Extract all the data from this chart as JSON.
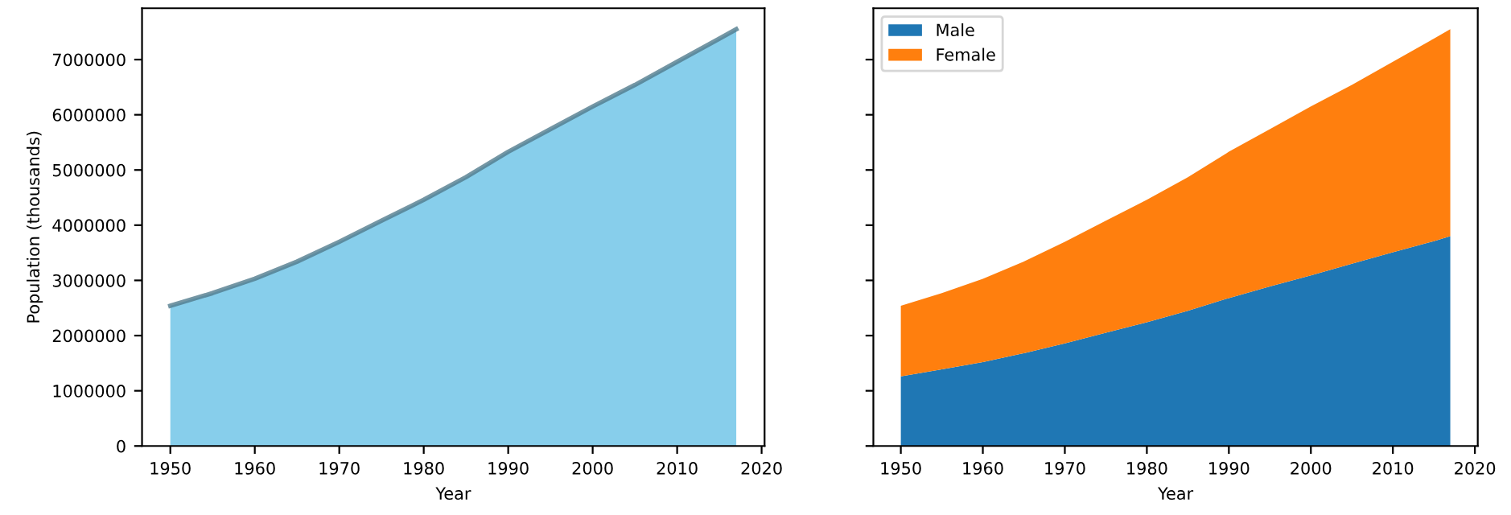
{
  "chart_data": [
    {
      "type": "area",
      "xlabel": "Year",
      "ylabel": "Population (thousands)",
      "x": [
        1950,
        1955,
        1960,
        1965,
        1970,
        1975,
        1980,
        1985,
        1990,
        1995,
        2000,
        2005,
        2010,
        2015,
        2017
      ],
      "series": [
        {
          "color": "#87ceeb",
          "values": [
            2540000,
            2770000,
            3030000,
            3340000,
            3700000,
            4080000,
            4460000,
            4870000,
            5330000,
            5740000,
            6150000,
            6540000,
            6960000,
            7380000,
            7550000
          ]
        }
      ],
      "xlim": [
        1946.65,
        2020.35
      ],
      "xticks": [
        1950,
        1960,
        1970,
        1980,
        1990,
        2000,
        2010,
        2020
      ],
      "ylim": [
        0,
        7930000
      ],
      "yticks": [
        0,
        1000000,
        2000000,
        3000000,
        4000000,
        5000000,
        6000000,
        7000000
      ]
    },
    {
      "type": "area",
      "stacked": true,
      "xlabel": "Year",
      "x": [
        1950,
        1955,
        1960,
        1965,
        1970,
        1975,
        1980,
        1985,
        1990,
        1995,
        2000,
        2005,
        2010,
        2015,
        2017
      ],
      "series": [
        {
          "name": "Male",
          "color": "#1f77b4",
          "values": [
            1260000,
            1390000,
            1520000,
            1680000,
            1860000,
            2050000,
            2240000,
            2450000,
            2680000,
            2890000,
            3090000,
            3300000,
            3510000,
            3710000,
            3800000
          ]
        },
        {
          "name": "Female",
          "color": "#ff7f0e",
          "values": [
            1280000,
            1380000,
            1510000,
            1660000,
            1840000,
            2030000,
            2220000,
            2420000,
            2650000,
            2850000,
            3060000,
            3240000,
            3450000,
            3670000,
            3750000
          ]
        }
      ],
      "legend": "top left",
      "tick_labels": "x",
      "xlim": [
        1946.65,
        2020.35
      ],
      "xticks": [
        1950,
        1960,
        1970,
        1980,
        1990,
        2000,
        2010,
        2020
      ],
      "ylim": [
        0,
        7930000
      ],
      "yticks": [
        0,
        1000000,
        2000000,
        3000000,
        4000000,
        5000000,
        6000000,
        7000000
      ]
    }
  ]
}
